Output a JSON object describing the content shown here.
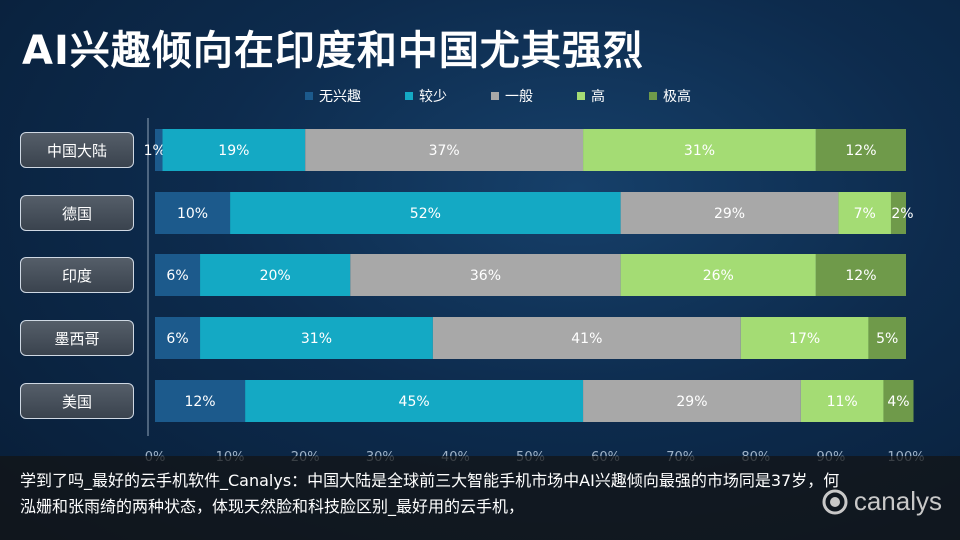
{
  "title": "AI兴趣倾向在印度和中国尤其强烈",
  "chart_data": {
    "type": "bar",
    "orientation": "horizontal",
    "stacked": true,
    "categories": [
      "中国大陆",
      "德国",
      "印度",
      "墨西哥",
      "美国"
    ],
    "series": [
      {
        "name": "无兴趣",
        "color": "#1c5a8c",
        "values": [
          1,
          10,
          6,
          6,
          12
        ]
      },
      {
        "name": "较少",
        "color": "#14a9c4",
        "values": [
          19,
          52,
          20,
          31,
          45
        ]
      },
      {
        "name": "一般",
        "color": "#a8a8a8",
        "values": [
          37,
          29,
          36,
          41,
          29
        ]
      },
      {
        "name": "高",
        "color": "#a4dc74",
        "values": [
          31,
          7,
          26,
          17,
          11
        ]
      },
      {
        "name": "极高",
        "color": "#6f9a4a",
        "values": [
          12,
          2,
          12,
          5,
          4
        ]
      }
    ],
    "xlim": [
      0,
      100
    ],
    "xticks": [
      "0%",
      "10%",
      "20%",
      "30%",
      "40%",
      "50%",
      "60%",
      "70%",
      "80%",
      "90%",
      "100%"
    ],
    "legend": "top",
    "grid": false
  },
  "footer": {
    "text": "学到了吗_最好的云手机软件_Canalys：中国大陆是全球前三大智能手机市场中AI兴趣倾向最强的市场同是37岁，何泓姗和张雨绮的两种状态，体现天然脸和科技脸区别_最好用的云手机，",
    "logo": "canalys"
  }
}
